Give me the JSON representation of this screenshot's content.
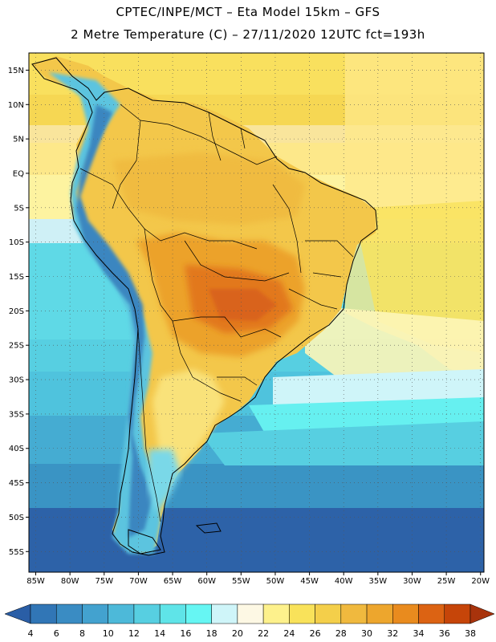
{
  "title": {
    "line1": "CPTEC/INPE/MCT –  Eta Model 15km – GFS",
    "line2": "2 Metre Temperature (C) – 27/11/2020 12UTC fct=193h"
  },
  "axes": {
    "lat_labels": [
      "15N",
      "10N",
      "5N",
      "EQ",
      "5S",
      "10S",
      "15S",
      "20S",
      "25S",
      "30S",
      "35S",
      "40S",
      "45S",
      "50S",
      "55S"
    ],
    "lat_values": [
      15,
      10,
      5,
      0,
      -5,
      -10,
      -15,
      -20,
      -25,
      -30,
      -35,
      -40,
      -45,
      -50,
      -55
    ],
    "lon_labels": [
      "85W",
      "80W",
      "75W",
      "70W",
      "65W",
      "60W",
      "55W",
      "50W",
      "45W",
      "40W",
      "35W",
      "30W",
      "25W",
      "20W"
    ],
    "lon_values": [
      -85,
      -80,
      -75,
      -70,
      -65,
      -60,
      -55,
      -50,
      -45,
      -40,
      -35,
      -30,
      -25,
      -20
    ],
    "lat_range": [
      -58,
      17.5
    ],
    "lon_range": [
      -86,
      -19.5
    ]
  },
  "colorbar": {
    "labels": [
      "4",
      "6",
      "8",
      "10",
      "12",
      "14",
      "16",
      "18",
      "20",
      "22",
      "24",
      "26",
      "28",
      "30",
      "32",
      "34",
      "36",
      "38"
    ],
    "colors": [
      "#2a5ea6",
      "#3176b6",
      "#3a8cc3",
      "#43a2cf",
      "#4db9d9",
      "#57cfe1",
      "#5fe4e8",
      "#66f6f3",
      "#cff5f9",
      "#fdf8e4",
      "#fdf18c",
      "#f9e25a",
      "#f4cf4a",
      "#f0b93e",
      "#eda62d",
      "#e98b1e",
      "#dc6313",
      "#c64509",
      "#a8330c"
    ]
  }
}
